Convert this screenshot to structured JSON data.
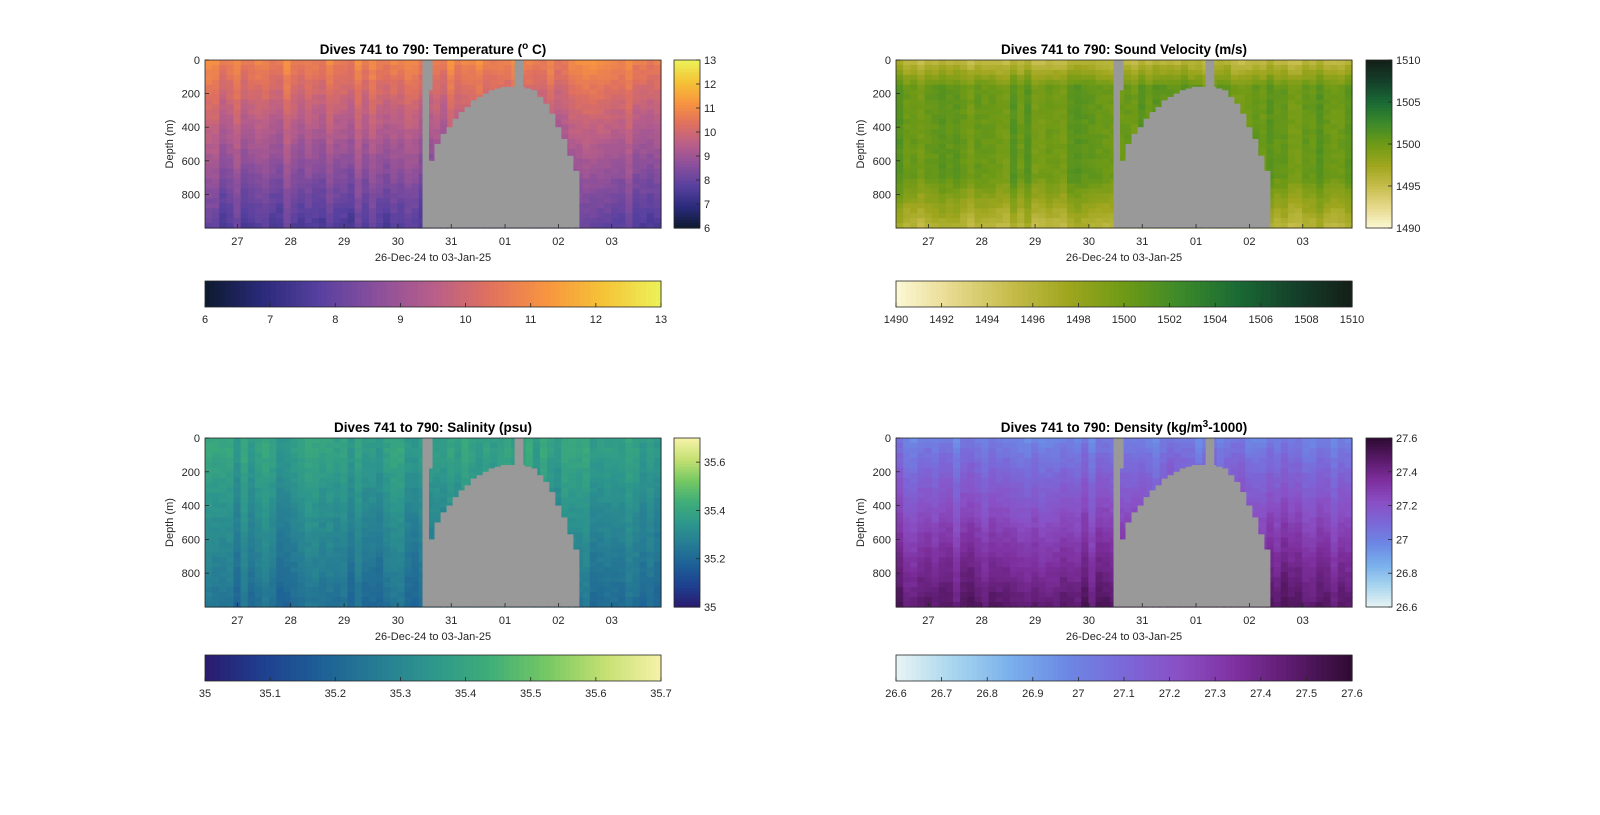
{
  "chart_data": [
    {
      "type": "heatmap",
      "title": "Dives 741 to 790: Temperature (",
      "title_sup": "o",
      "title_tail": " C)",
      "xlabel": "26-Dec-24 to 03-Jan-25",
      "ylabel": "Depth (m)",
      "x_ticks": [
        "27",
        "28",
        "29",
        "30",
        "31",
        "01",
        "02",
        "03"
      ],
      "y_ticks": [
        0,
        200,
        400,
        600,
        800
      ],
      "ylim": [
        0,
        1000
      ],
      "colorbar_right": {
        "ticks": [
          "6",
          "7",
          "8",
          "9",
          "10",
          "11",
          "12",
          "13"
        ],
        "range": [
          6,
          13
        ]
      },
      "colorbar_bottom": {
        "ticks": [
          "6",
          "7",
          "8",
          "9",
          "10",
          "11",
          "12",
          "13"
        ],
        "range": [
          6,
          13
        ]
      },
      "colormap": [
        "#0c1a2e",
        "#2a2a7a",
        "#5740a0",
        "#8a4f9c",
        "#b85e8a",
        "#e0715e",
        "#f89540",
        "#f5c436",
        "#ecf25a"
      ],
      "surface_value": 10.9,
      "deep_value": 7.7,
      "missing_color": "#999999"
    },
    {
      "type": "heatmap",
      "title": "Dives 741 to 790: Sound Velocity (m/s)",
      "title_sup": "",
      "title_tail": "",
      "xlabel": "26-Dec-24 to 03-Jan-25",
      "ylabel": "Depth (m)",
      "x_ticks": [
        "27",
        "28",
        "29",
        "30",
        "31",
        "01",
        "02",
        "03"
      ],
      "y_ticks": [
        0,
        200,
        400,
        600,
        800
      ],
      "ylim": [
        0,
        1000
      ],
      "colorbar_right": {
        "ticks": [
          "1490",
          "1495",
          "1500",
          "1505",
          "1510"
        ],
        "range": [
          1490,
          1510
        ]
      },
      "colorbar_bottom": {
        "ticks": [
          "1490",
          "1492",
          "1494",
          "1496",
          "1498",
          "1500",
          "1502",
          "1504",
          "1506",
          "1508",
          "1510"
        ],
        "range": [
          1490,
          1510
        ]
      },
      "colormap": [
        "#fdf8d6",
        "#e6d98c",
        "#c6bd4c",
        "#9fa61e",
        "#6f9a16",
        "#3c8a2a",
        "#1a6a35",
        "#14402a",
        "#141f18"
      ],
      "surface_value": 1494.5,
      "deep_value": 1497.0,
      "missing_color": "#999999"
    },
    {
      "type": "heatmap",
      "title": "Dives 741 to 790: Salinity (psu)",
      "title_sup": "",
      "title_tail": "",
      "xlabel": "26-Dec-24 to 03-Jan-25",
      "ylabel": "Depth (m)",
      "x_ticks": [
        "27",
        "28",
        "29",
        "30",
        "31",
        "01",
        "02",
        "03"
      ],
      "y_ticks": [
        0,
        200,
        400,
        600,
        800
      ],
      "ylim": [
        0,
        1000
      ],
      "colorbar_right": {
        "ticks": [
          "35",
          "35.2",
          "35.4",
          "35.6"
        ],
        "range": [
          35,
          35.7
        ]
      },
      "colorbar_bottom": {
        "ticks": [
          "35",
          "35.1",
          "35.2",
          "35.3",
          "35.4",
          "35.5",
          "35.6",
          "35.7"
        ],
        "range": [
          35,
          35.7
        ]
      },
      "colormap": [
        "#2a1a6e",
        "#1f3f8f",
        "#1d5f96",
        "#267c94",
        "#2e978c",
        "#3fae78",
        "#76c863",
        "#c4e072",
        "#f6f2a8"
      ],
      "surface_value": 35.4,
      "deep_value": 35.22,
      "missing_color": "#999999"
    },
    {
      "type": "heatmap",
      "title": "Dives 741 to 790: Density (kg/m",
      "title_sup": "3",
      "title_tail": "-1000)",
      "xlabel": "26-Dec-24 to 03-Jan-25",
      "ylabel": "Depth (m)",
      "x_ticks": [
        "27",
        "28",
        "29",
        "30",
        "31",
        "01",
        "02",
        "03"
      ],
      "y_ticks": [
        0,
        200,
        400,
        600,
        800
      ],
      "ylim": [
        0,
        1000
      ],
      "colorbar_right": {
        "ticks": [
          "26.6",
          "26.8",
          "27",
          "27.2",
          "27.4",
          "27.6"
        ],
        "range": [
          26.6,
          27.6
        ]
      },
      "colorbar_bottom": {
        "ticks": [
          "26.6",
          "26.7",
          "26.8",
          "26.9",
          "27",
          "27.1",
          "27.2",
          "27.3",
          "27.4",
          "27.5",
          "27.6"
        ],
        "range": [
          26.6,
          27.6
        ]
      },
      "colormap": [
        "#e8f4f4",
        "#a9d6ee",
        "#7ab0ec",
        "#6c88e4",
        "#7b68d8",
        "#8a4fc4",
        "#7e2f9e",
        "#5a1a6a",
        "#2e0b32"
      ],
      "surface_value": 27.0,
      "deep_value": 27.48,
      "missing_color": "#999999"
    }
  ]
}
